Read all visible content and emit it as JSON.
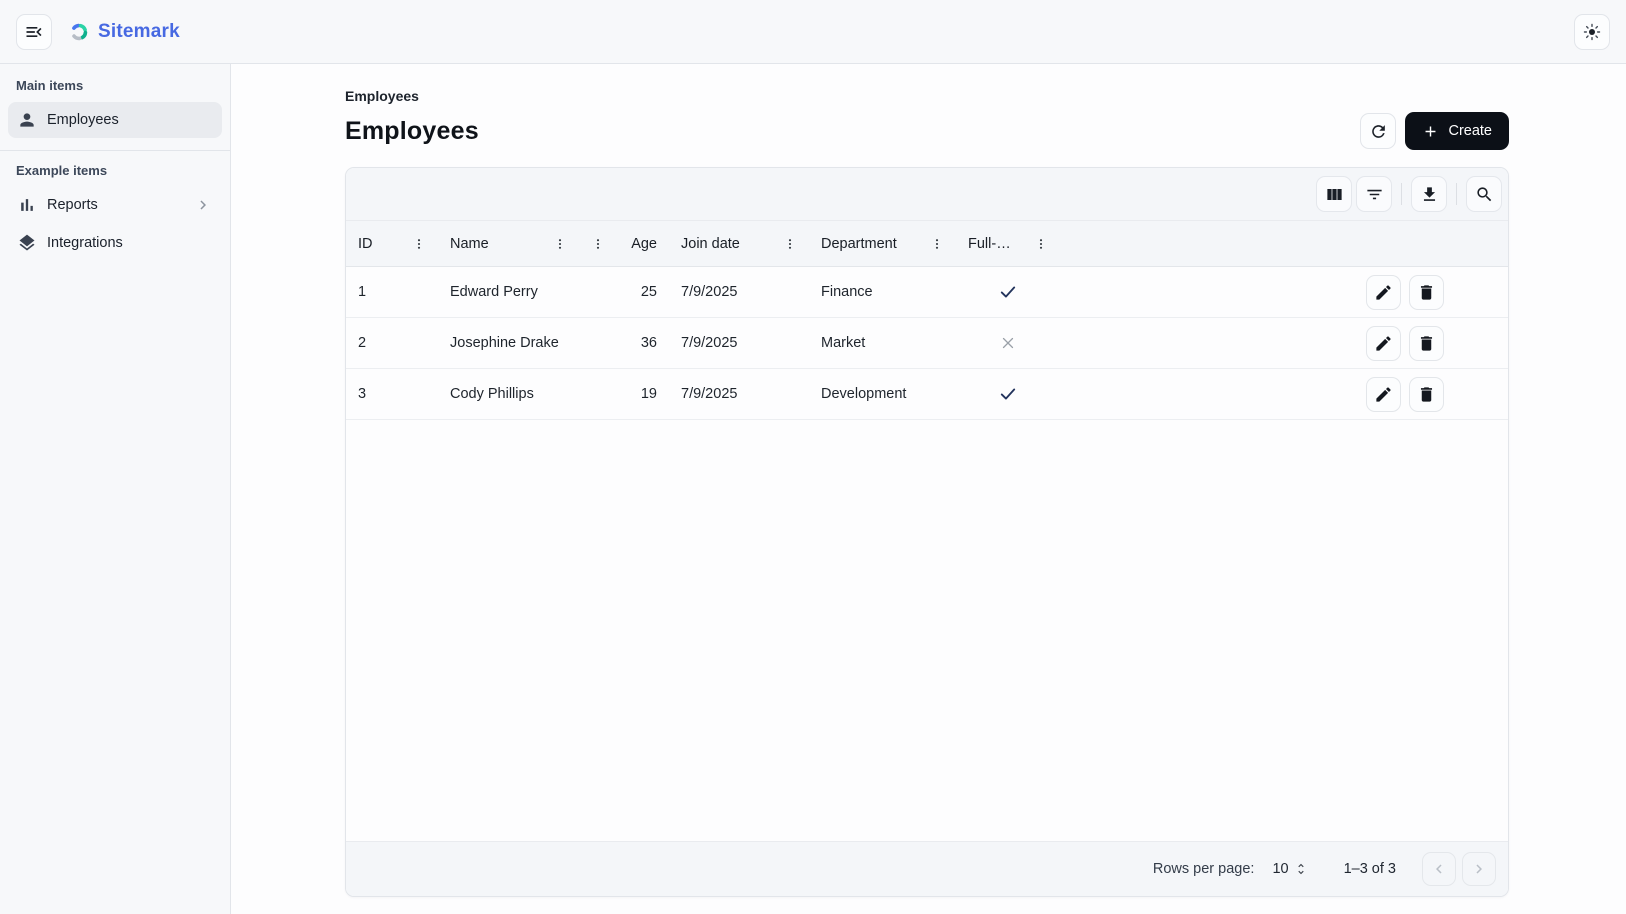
{
  "topbar": {
    "logo_text": "Sitemark"
  },
  "sidebar": {
    "sections": [
      {
        "header": "Main items",
        "items": [
          {
            "label": "Employees",
            "selected": true
          }
        ]
      },
      {
        "header": "Example items",
        "items": [
          {
            "label": "Reports",
            "expandable": true
          },
          {
            "label": "Integrations"
          }
        ]
      }
    ]
  },
  "page": {
    "breadcrumb": "Employees",
    "title": "Employees",
    "create_label": "Create"
  },
  "grid": {
    "columns": [
      {
        "label": "ID",
        "align": "left"
      },
      {
        "label": "Name",
        "align": "left"
      },
      {
        "label": "Age",
        "align": "right"
      },
      {
        "label": "Join date",
        "align": "left"
      },
      {
        "label": "Department",
        "align": "left"
      },
      {
        "label": "Full-…",
        "align": "left"
      }
    ],
    "rows": [
      {
        "id": "1",
        "name": "Edward Perry",
        "age": "25",
        "join_date": "7/9/2025",
        "department": "Finance",
        "full_time": true
      },
      {
        "id": "2",
        "name": "Josephine Drake",
        "age": "36",
        "join_date": "7/9/2025",
        "department": "Market",
        "full_time": false
      },
      {
        "id": "3",
        "name": "Cody Phillips",
        "age": "19",
        "join_date": "7/9/2025",
        "department": "Development",
        "full_time": true
      }
    ],
    "footer": {
      "rows_per_page_label": "Rows per page:",
      "rows_per_page_value": "10",
      "range_label": "1–3 of 3"
    }
  },
  "colors": {
    "brand": "#4769e2",
    "logo_blue": "#4876ee",
    "logo_green": "#2ad3a6",
    "logo_teal": "#0faf8d",
    "logo_gray": "#b7bdc6",
    "surface": "#f7f8fa",
    "strip": "#f4f6f9",
    "border": "#e2e5ea",
    "create_bg": "#0c1017",
    "check": "#22335c",
    "cross": "#9aa0a8"
  }
}
